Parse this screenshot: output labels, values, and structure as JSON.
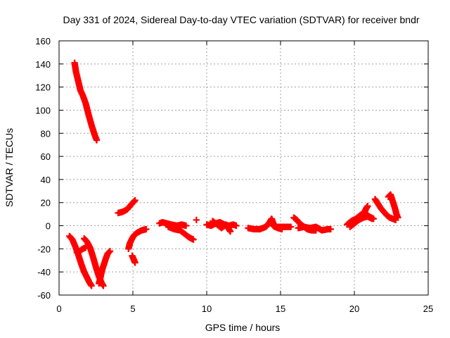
{
  "chart_data": {
    "type": "scatter",
    "title": "Day 331 of 2024, Sidereal Day-to-day VTEC variation (SDTVAR) for receiver bndr",
    "xlabel": "GPS time / hours",
    "ylabel": "SDTVAR / TECUs",
    "xlim": [
      0,
      25
    ],
    "ylim": [
      -60,
      160
    ],
    "xticks": [
      0,
      5,
      10,
      15,
      20,
      25
    ],
    "yticks": [
      -60,
      -40,
      -20,
      0,
      20,
      40,
      60,
      80,
      100,
      120,
      140,
      160
    ],
    "grid": true,
    "marker": "+",
    "marker_color": "#ff0000",
    "segments": [
      {
        "points": [
          [
            1.05,
            141
          ],
          [
            1.15,
            133
          ],
          [
            1.3,
            125
          ],
          [
            1.45,
            117
          ],
          [
            1.6,
            113
          ],
          [
            1.8,
            106
          ],
          [
            2.0,
            96
          ],
          [
            2.2,
            87
          ],
          [
            2.4,
            79
          ],
          [
            2.55,
            74
          ]
        ]
      },
      {
        "points": [
          [
            0.7,
            -9
          ],
          [
            0.9,
            -12
          ],
          [
            1.1,
            -18
          ],
          [
            1.3,
            -25
          ],
          [
            1.5,
            -33
          ],
          [
            1.7,
            -40
          ],
          [
            1.9,
            -45
          ],
          [
            2.05,
            -49
          ],
          [
            2.2,
            -52
          ]
        ]
      },
      {
        "points": [
          [
            1.2,
            -23
          ],
          [
            1.4,
            -22
          ],
          [
            1.6,
            -20
          ],
          [
            1.8,
            -19
          ]
        ]
      },
      {
        "points": [
          [
            1.7,
            -11
          ],
          [
            1.9,
            -14
          ],
          [
            2.1,
            -19
          ],
          [
            2.3,
            -27
          ],
          [
            2.5,
            -36
          ],
          [
            2.7,
            -44
          ],
          [
            2.9,
            -50
          ],
          [
            3.0,
            -52
          ]
        ]
      },
      {
        "points": [
          [
            2.7,
            -50
          ],
          [
            2.8,
            -45
          ],
          [
            2.9,
            -39
          ],
          [
            3.0,
            -35
          ],
          [
            3.15,
            -29
          ],
          [
            3.3,
            -24
          ],
          [
            3.45,
            -22
          ]
        ]
      },
      {
        "points": [
          [
            4.0,
            11
          ],
          [
            4.3,
            12
          ],
          [
            4.6,
            14
          ],
          [
            4.8,
            17
          ],
          [
            5.0,
            20
          ],
          [
            5.15,
            22
          ]
        ]
      },
      {
        "points": [
          [
            4.7,
            -20
          ],
          [
            4.8,
            -15
          ],
          [
            4.95,
            -11
          ],
          [
            5.1,
            -8
          ],
          [
            5.3,
            -6
          ],
          [
            5.6,
            -4
          ],
          [
            5.9,
            -3
          ]
        ]
      },
      {
        "points": [
          [
            4.95,
            -26
          ],
          [
            5.05,
            -29
          ],
          [
            5.15,
            -32
          ]
        ]
      },
      {
        "points": [
          [
            6.8,
            2
          ],
          [
            7.0,
            3
          ],
          [
            7.3,
            2
          ],
          [
            7.6,
            1
          ],
          [
            8.0,
            0
          ],
          [
            8.3,
            1
          ],
          [
            8.6,
            0
          ]
        ]
      },
      {
        "points": [
          [
            7.4,
            -1
          ],
          [
            7.8,
            -3
          ],
          [
            8.2,
            -4
          ],
          [
            8.5,
            -7
          ],
          [
            8.8,
            -10
          ],
          [
            9.1,
            -12
          ]
        ]
      },
      {
        "points": [
          [
            9.3,
            5
          ]
        ]
      },
      {
        "points": [
          [
            10.0,
            1
          ],
          [
            10.3,
            0
          ],
          [
            10.6,
            2
          ],
          [
            10.9,
            3
          ],
          [
            11.2,
            1
          ],
          [
            11.5,
            0
          ],
          [
            11.8,
            1
          ],
          [
            12.0,
            0
          ]
        ]
      },
      {
        "points": [
          [
            10.4,
            4
          ],
          [
            10.7,
            1
          ],
          [
            11.0,
            -2
          ],
          [
            11.3,
            1
          ],
          [
            11.6,
            -5
          ]
        ]
      },
      {
        "points": [
          [
            12.8,
            -2
          ],
          [
            13.2,
            -3
          ],
          [
            13.6,
            -3
          ],
          [
            14.0,
            -1
          ],
          [
            14.2,
            2
          ],
          [
            14.4,
            6
          ],
          [
            14.6,
            -1
          ],
          [
            15.0,
            -1
          ],
          [
            15.4,
            -1
          ],
          [
            15.7,
            -1
          ]
        ]
      },
      {
        "points": [
          [
            14.5,
            0
          ],
          [
            14.8,
            -2
          ],
          [
            15.1,
            -3
          ]
        ]
      },
      {
        "points": [
          [
            15.9,
            7
          ],
          [
            16.1,
            5
          ],
          [
            16.3,
            2
          ],
          [
            16.5,
            0
          ],
          [
            16.8,
            -3
          ],
          [
            17.1,
            -4
          ],
          [
            17.4,
            -4
          ]
        ]
      },
      {
        "points": [
          [
            16.2,
            -2
          ],
          [
            16.6,
            -1
          ],
          [
            17.0,
            -2
          ],
          [
            17.4,
            -1
          ],
          [
            17.8,
            -4
          ],
          [
            18.2,
            -3
          ],
          [
            18.4,
            -3
          ]
        ]
      },
      {
        "points": [
          [
            19.5,
            1
          ],
          [
            19.8,
            4
          ],
          [
            20.1,
            6
          ],
          [
            20.4,
            9
          ],
          [
            20.6,
            11
          ],
          [
            20.8,
            10
          ],
          [
            21.0,
            8
          ],
          [
            21.3,
            6
          ]
        ]
      },
      {
        "points": [
          [
            19.7,
            -1
          ],
          [
            20.0,
            2
          ],
          [
            20.3,
            5
          ],
          [
            20.6,
            7
          ],
          [
            20.9,
            8
          ],
          [
            21.2,
            6
          ]
        ]
      },
      {
        "points": [
          [
            20.7,
            12
          ],
          [
            20.8,
            15
          ],
          [
            20.9,
            17
          ]
        ]
      },
      {
        "points": [
          [
            21.4,
            23
          ],
          [
            21.6,
            19
          ],
          [
            21.8,
            15
          ],
          [
            22.0,
            12
          ],
          [
            22.2,
            9
          ],
          [
            22.4,
            7
          ],
          [
            22.6,
            6
          ],
          [
            22.8,
            5
          ]
        ]
      },
      {
        "points": [
          [
            22.3,
            25
          ],
          [
            22.45,
            27
          ],
          [
            22.6,
            21
          ],
          [
            22.75,
            15
          ],
          [
            22.85,
            10
          ],
          [
            22.95,
            7
          ]
        ]
      }
    ]
  }
}
